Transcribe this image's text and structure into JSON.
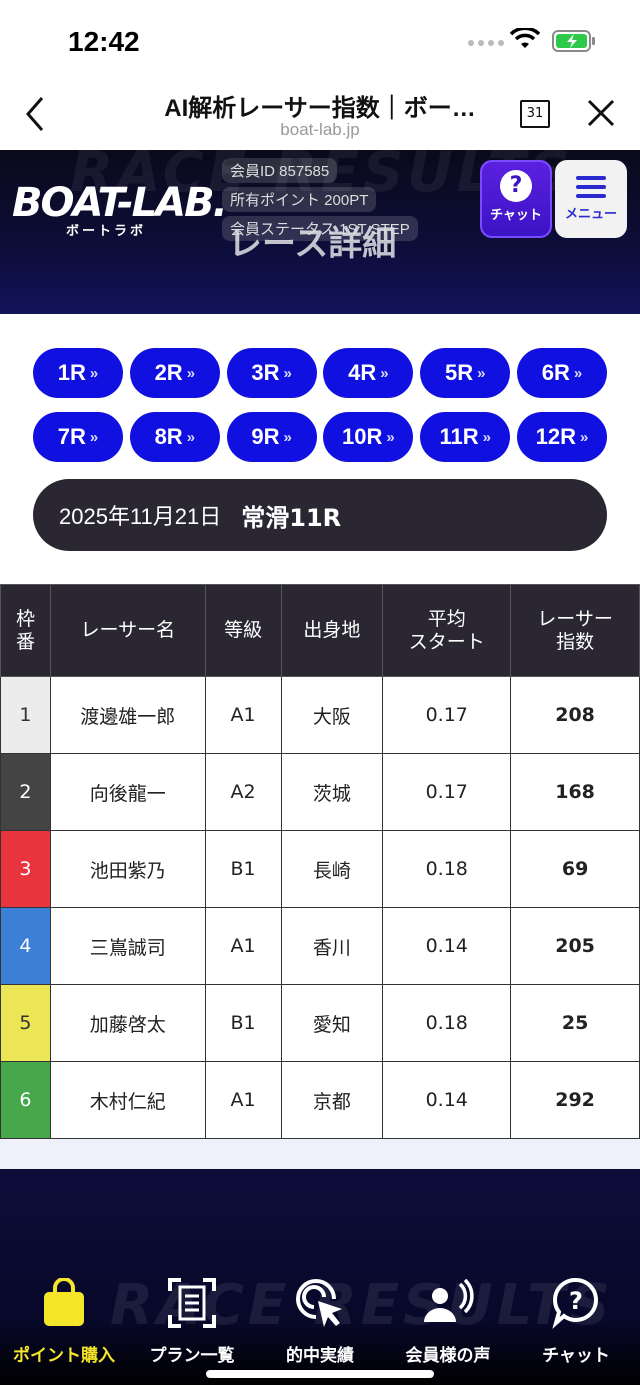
{
  "status_bar": {
    "time": "12:42"
  },
  "browser": {
    "title": "AI解析レーサー指数｜ボー…",
    "url": "boat-lab.jp",
    "calendar_day": "31"
  },
  "header": {
    "logo": "BOAT-LAB.",
    "logo_sub": "ボートラボ",
    "member_id": "会員ID 857585",
    "points": "所有ポイント 200PT",
    "status": "会員ステータス 1ST STEP",
    "chat_label": "チャット",
    "menu_label": "メニュー",
    "ghost_title": "レース詳細"
  },
  "races": [
    "1R",
    "2R",
    "3R",
    "4R",
    "5R",
    "6R",
    "7R",
    "8R",
    "9R",
    "10R",
    "11R",
    "12R"
  ],
  "race_info": {
    "date": "2025年11月21日",
    "venue": "常滑11R"
  },
  "table": {
    "headers": [
      "枠\n番",
      "レーサー名",
      "等級",
      "出身地",
      "平均\nスタート",
      "レーサー\n指数"
    ],
    "rows": [
      {
        "waku": "1",
        "name": "渡邊雄一郎",
        "grade": "A1",
        "origin": "大阪",
        "start": "0.17",
        "index": "208",
        "color": "#ececec",
        "fg": "#333"
      },
      {
        "waku": "2",
        "name": "向後龍一",
        "grade": "A2",
        "origin": "茨城",
        "start": "0.17",
        "index": "168",
        "color": "#444444",
        "fg": "#fff"
      },
      {
        "waku": "3",
        "name": "池田紫乃",
        "grade": "B1",
        "origin": "長崎",
        "start": "0.18",
        "index": "69",
        "color": "#e8343c",
        "fg": "#fff"
      },
      {
        "waku": "4",
        "name": "三嶌誠司",
        "grade": "A1",
        "origin": "香川",
        "start": "0.14",
        "index": "205",
        "color": "#3b7fd6",
        "fg": "#fff"
      },
      {
        "waku": "5",
        "name": "加藤啓太",
        "grade": "B1",
        "origin": "愛知",
        "start": "0.18",
        "index": "25",
        "color": "#ece656",
        "fg": "#333"
      },
      {
        "waku": "6",
        "name": "木村仁紀",
        "grade": "A1",
        "origin": "京都",
        "start": "0.14",
        "index": "292",
        "color": "#46a84a",
        "fg": "#fff"
      }
    ]
  },
  "tabbar": [
    {
      "label": "ポイント購入",
      "icon": "shopping-bag-icon"
    },
    {
      "label": "プラン一覧",
      "icon": "document-scan-icon"
    },
    {
      "label": "的中実績",
      "icon": "target-cursor-icon"
    },
    {
      "label": "会員様の声",
      "icon": "voice-user-icon"
    },
    {
      "label": "チャット",
      "icon": "chat-question-icon"
    }
  ],
  "footer": {
    "ghost_text": "RACE RESULTS"
  }
}
